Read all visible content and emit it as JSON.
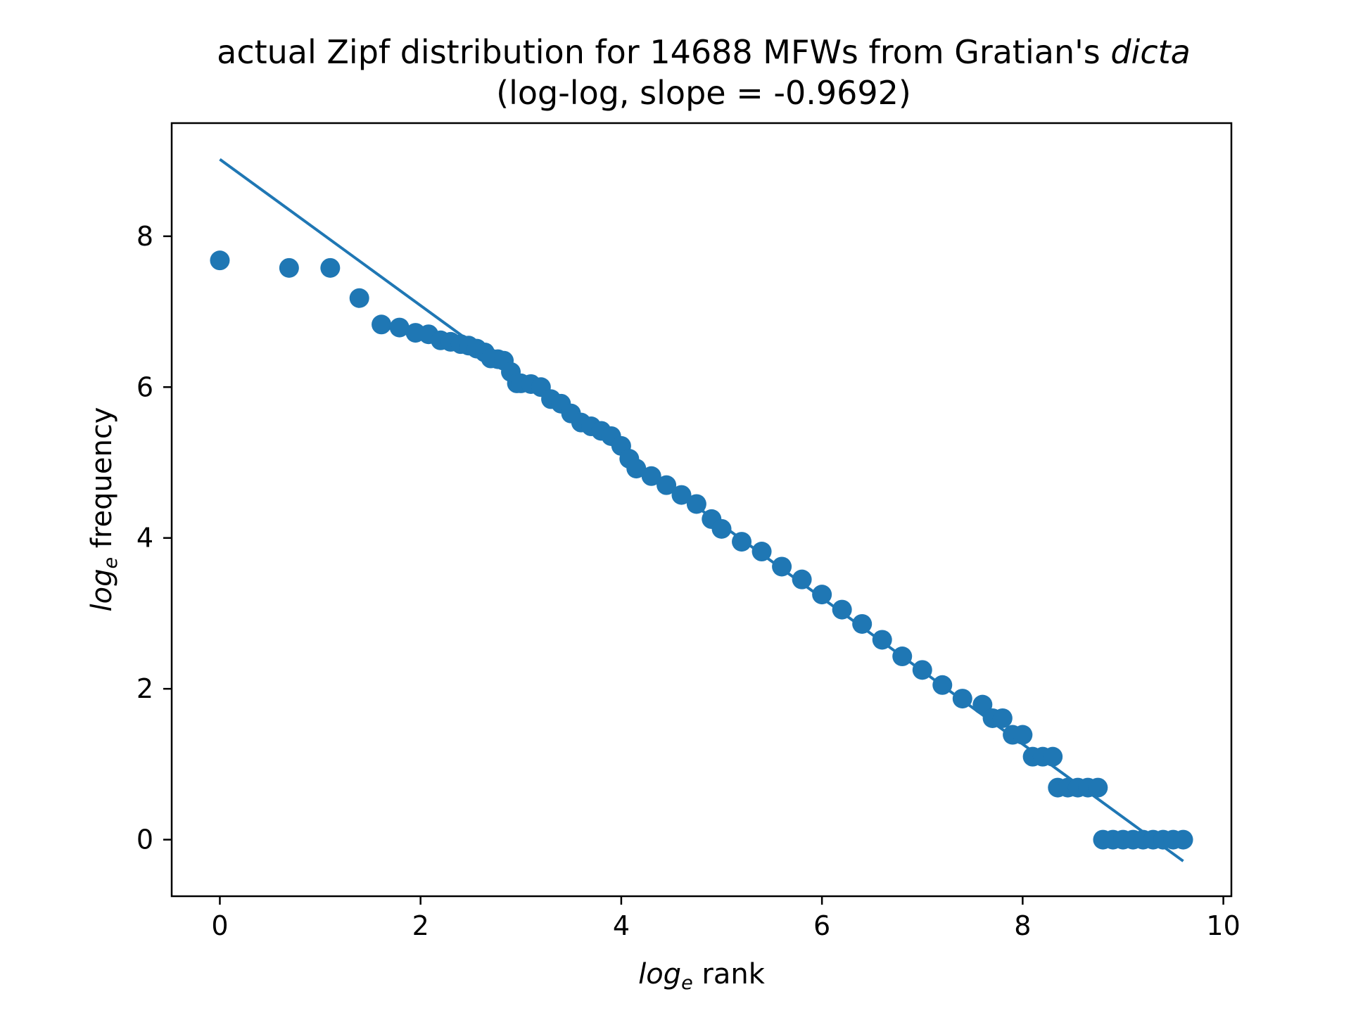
{
  "chart_data": {
    "type": "scatter",
    "title_main": "actual Zipf distribution for 14688 MFWs from Gratian's ",
    "title_italic": "dicta",
    "subtitle": "(log-log, slope = -0.9692)",
    "xlabel_log": "log",
    "xlabel_sub": "e",
    "xlabel_rest": " rank",
    "ylabel_log": "log",
    "ylabel_sub": "e",
    "ylabel_rest": " frequency",
    "xlim": [
      -0.48,
      10.08
    ],
    "ylim": [
      -0.75,
      9.5
    ],
    "xticks": [
      0,
      2,
      4,
      6,
      8,
      10
    ],
    "xtick_labels": [
      "0",
      "2",
      "4",
      "6",
      "8",
      "10"
    ],
    "yticks": [
      0,
      2,
      4,
      6,
      8
    ],
    "ytick_labels": [
      "0",
      "2",
      "4",
      "6",
      "8"
    ],
    "grid": false,
    "color": "#1f77b4",
    "fit_line": {
      "slope": -0.9692,
      "intercept": 9.02,
      "x_range": [
        0,
        9.6
      ]
    },
    "points": [
      [
        0,
        7.68
      ],
      [
        0.69,
        7.58
      ],
      [
        1.1,
        7.58
      ],
      [
        1.39,
        7.18
      ],
      [
        1.61,
        6.83
      ],
      [
        1.79,
        6.79
      ],
      [
        1.95,
        6.72
      ],
      [
        2.08,
        6.7
      ],
      [
        2.2,
        6.62
      ],
      [
        2.3,
        6.6
      ],
      [
        2.4,
        6.57
      ],
      [
        2.48,
        6.55
      ],
      [
        2.56,
        6.51
      ],
      [
        2.64,
        6.46
      ],
      [
        2.7,
        6.38
      ],
      [
        2.77,
        6.37
      ],
      [
        2.83,
        6.35
      ],
      [
        2.9,
        6.2
      ],
      [
        2.96,
        6.05
      ],
      [
        3.0,
        6.05
      ],
      [
        3.1,
        6.04
      ],
      [
        3.2,
        6.0
      ],
      [
        3.3,
        5.84
      ],
      [
        3.4,
        5.78
      ],
      [
        3.5,
        5.65
      ],
      [
        3.6,
        5.53
      ],
      [
        3.7,
        5.48
      ],
      [
        3.8,
        5.42
      ],
      [
        3.9,
        5.35
      ],
      [
        4.0,
        5.22
      ],
      [
        4.08,
        5.05
      ],
      [
        4.15,
        4.92
      ],
      [
        4.3,
        4.82
      ],
      [
        4.45,
        4.7
      ],
      [
        4.6,
        4.57
      ],
      [
        4.75,
        4.45
      ],
      [
        4.9,
        4.25
      ],
      [
        5.0,
        4.12
      ],
      [
        5.2,
        3.95
      ],
      [
        5.4,
        3.82
      ],
      [
        5.6,
        3.62
      ],
      [
        5.8,
        3.45
      ],
      [
        6.0,
        3.25
      ],
      [
        6.2,
        3.05
      ],
      [
        6.4,
        2.86
      ],
      [
        6.6,
        2.65
      ],
      [
        6.8,
        2.43
      ],
      [
        7.0,
        2.25
      ],
      [
        7.2,
        2.05
      ],
      [
        7.4,
        1.87
      ],
      [
        7.6,
        1.79
      ],
      [
        7.7,
        1.61
      ],
      [
        7.8,
        1.61
      ],
      [
        7.9,
        1.39
      ],
      [
        8.0,
        1.39
      ],
      [
        8.1,
        1.1
      ],
      [
        8.2,
        1.1
      ],
      [
        8.3,
        1.1
      ],
      [
        8.35,
        0.69
      ],
      [
        8.45,
        0.69
      ],
      [
        8.55,
        0.69
      ],
      [
        8.65,
        0.69
      ],
      [
        8.75,
        0.69
      ],
      [
        8.8,
        0.0
      ],
      [
        8.9,
        0.0
      ],
      [
        9.0,
        0.0
      ],
      [
        9.1,
        0.0
      ],
      [
        9.2,
        0.0
      ],
      [
        9.3,
        0.0
      ],
      [
        9.4,
        0.0
      ],
      [
        9.5,
        0.0
      ],
      [
        9.6,
        0.0
      ]
    ]
  }
}
